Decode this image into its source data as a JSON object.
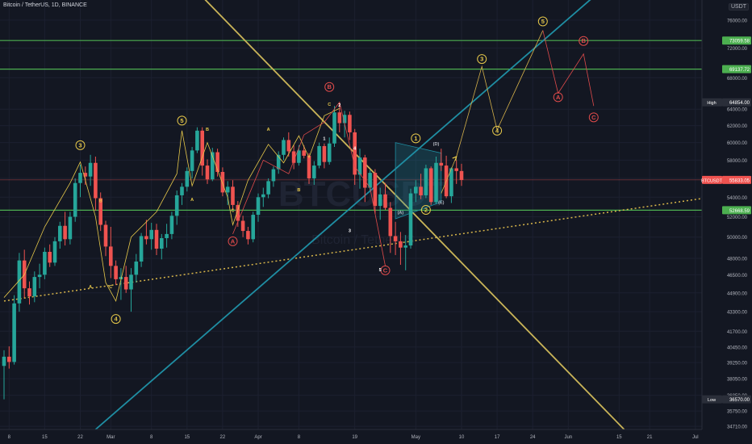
{
  "symbol_title": "Bitcoin / TetherUS, 1D, BINANCE",
  "currency_button": "USDT",
  "watermark_symbol": "BTCUSDT",
  "watermark_name": "Bitcoin / TetherUS",
  "colors": {
    "background": "#131722",
    "up": "#26a69a",
    "down": "#ef5350",
    "support_line": "#4caf50",
    "trend_yellow": "#c9b458",
    "trend_cyan": "#1f8ea3",
    "wave_yellow": "#e6c84a",
    "wave_red": "#e04b4b"
  },
  "chart_data": {
    "type": "candlestick",
    "title": "Bitcoin / TetherUS, 1D, BINANCE",
    "y_axis": {
      "scale": "log",
      "range": [
        34500,
        79000
      ],
      "ticks": [
        "76000.00",
        "72000.00",
        "68000.00",
        "64000.00",
        "62000.00",
        "60000.00",
        "58000.00",
        "56000.00",
        "54000.00",
        "52000.00",
        "50000.00",
        "48000.00",
        "46500.00",
        "44900.00",
        "43300.00",
        "41700.00",
        "40450.00",
        "39250.00",
        "38050.00",
        "36850.00",
        "35750.00",
        "34710.00"
      ],
      "tick_values": [
        76000,
        72000,
        68000,
        64000,
        62000,
        60000,
        58000,
        56000,
        54000,
        52000,
        50000,
        48000,
        46500,
        44900,
        43300,
        41700,
        40450,
        39250,
        38050,
        36850,
        35750,
        34710
      ]
    },
    "x_axis": {
      "ticks": [
        "8",
        "15",
        "22",
        "Mar",
        "8",
        "15",
        "22",
        "Apr",
        "8",
        "19",
        "May",
        "10",
        "17",
        "24",
        "Jun",
        "15",
        "21",
        "Jul"
      ],
      "tick_index": [
        1,
        8,
        15,
        21,
        29,
        36,
        43,
        50,
        58,
        69,
        81,
        90,
        97,
        104,
        111,
        121,
        127,
        136
      ],
      "total_bars": 140
    },
    "price_labels": [
      {
        "text": "73059.58",
        "value": 73059.58,
        "kind": "level"
      },
      {
        "text": "69137.72",
        "value": 69137.72,
        "kind": "level"
      },
      {
        "text": "High",
        "value": 64854,
        "kind": "tag"
      },
      {
        "text": "64854.00",
        "value": 64854,
        "kind": "high"
      },
      {
        "text": "BTCUSDT",
        "value": 55833.05,
        "kind": "tag"
      },
      {
        "text": "55833.05",
        "value": 55833.05,
        "kind": "last"
      },
      {
        "text": "52668.59",
        "value": 52668.59,
        "kind": "level"
      },
      {
        "text": "Low",
        "value": 36570,
        "kind": "tag"
      },
      {
        "text": "36570.00",
        "value": 36570,
        "kind": "low"
      }
    ],
    "horizontal_lines": [
      73059.58,
      69137.72,
      52668.59
    ],
    "candles": [
      [
        39000,
        40200,
        36570,
        39700
      ],
      [
        39700,
        40500,
        38800,
        39300
      ],
      [
        39300,
        44700,
        39100,
        44000
      ],
      [
        44000,
        48500,
        43300,
        47800
      ],
      [
        47800,
        48800,
        44500,
        45300
      ],
      [
        45300,
        45900,
        43900,
        44600
      ],
      [
        44600,
        46800,
        44100,
        46300
      ],
      [
        46300,
        47500,
        45300,
        46500
      ],
      [
        46500,
        49000,
        46100,
        48600
      ],
      [
        48600,
        49300,
        47200,
        47600
      ],
      [
        47600,
        50000,
        47300,
        49600
      ],
      [
        49600,
        51500,
        48900,
        51100
      ],
      [
        51100,
        52500,
        49200,
        49800
      ],
      [
        49800,
        52500,
        49300,
        52000
      ],
      [
        52000,
        56000,
        51500,
        55500
      ],
      [
        55500,
        57500,
        54000,
        56600
      ],
      [
        56600,
        57300,
        55300,
        56200
      ],
      [
        56200,
        58600,
        55200,
        57700
      ],
      [
        57700,
        58400,
        52600,
        53900
      ],
      [
        53900,
        54500,
        50600,
        51200
      ],
      [
        51200,
        51600,
        48200,
        49100
      ],
      [
        49100,
        51000,
        46200,
        47300
      ],
      [
        47300,
        47800,
        45600,
        46100
      ],
      [
        46100,
        47100,
        44300,
        46300
      ],
      [
        46300,
        47300,
        44900,
        45200
      ],
      [
        45200,
        47100,
        43300,
        46500
      ],
      [
        46500,
        48400,
        45800,
        47700
      ],
      [
        47700,
        50400,
        47200,
        50100
      ],
      [
        50100,
        51700,
        49300,
        49800
      ],
      [
        49800,
        51400,
        48800,
        50700
      ],
      [
        50700,
        51300,
        48300,
        48900
      ],
      [
        48900,
        50300,
        47900,
        49900
      ],
      [
        49900,
        51300,
        49000,
        50300
      ],
      [
        50300,
        52500,
        49800,
        52100
      ],
      [
        52100,
        54700,
        51200,
        54200
      ],
      [
        54200,
        55500,
        53200,
        55100
      ],
      [
        55100,
        57200,
        54600,
        56800
      ],
      [
        56800,
        59500,
        56000,
        59100
      ],
      [
        59100,
        61800,
        58800,
        61400
      ],
      [
        61400,
        61800,
        56300,
        57400
      ],
      [
        57400,
        58100,
        55400,
        55900
      ],
      [
        55900,
        59400,
        55700,
        58900
      ],
      [
        58900,
        59300,
        56200,
        56700
      ],
      [
        56700,
        57200,
        54100,
        54500
      ],
      [
        54500,
        55700,
        53200,
        55100
      ],
      [
        55100,
        55800,
        52700,
        53200
      ],
      [
        53200,
        53600,
        51000,
        51600
      ],
      [
        51600,
        52100,
        50000,
        50600
      ],
      [
        50600,
        51000,
        49300,
        49800
      ],
      [
        49800,
        52500,
        49500,
        52200
      ],
      [
        52200,
        54400,
        51500,
        54000
      ],
      [
        54000,
        55000,
        53000,
        54300
      ],
      [
        54300,
        56000,
        53900,
        55700
      ],
      [
        55700,
        57300,
        55100,
        57000
      ],
      [
        57000,
        59000,
        56500,
        58600
      ],
      [
        58600,
        60600,
        58000,
        60300
      ],
      [
        60300,
        61200,
        58400,
        59000
      ],
      [
        59000,
        59700,
        57000,
        57700
      ],
      [
        57700,
        59700,
        57400,
        59100
      ],
      [
        59100,
        59700,
        58200,
        58500
      ],
      [
        58500,
        58800,
        55400,
        56000
      ],
      [
        56000,
        57900,
        55300,
        57400
      ],
      [
        57400,
        60000,
        57100,
        59600
      ],
      [
        59600,
        59900,
        57100,
        57800
      ],
      [
        57800,
        60600,
        57500,
        59900
      ],
      [
        59900,
        64400,
        59500,
        63600
      ],
      [
        63600,
        64854,
        61200,
        62300
      ],
      [
        62300,
        63800,
        60600,
        63300
      ],
      [
        63300,
        63700,
        60300,
        61200
      ],
      [
        61200,
        61600,
        55300,
        56400
      ],
      [
        56400,
        59300,
        54900,
        58300
      ],
      [
        58300,
        58600,
        53500,
        55000
      ],
      [
        55000,
        56900,
        54600,
        56600
      ],
      [
        56600,
        57000,
        52300,
        53100
      ],
      [
        53100,
        55000,
        51700,
        54300
      ],
      [
        54300,
        55500,
        52700,
        52900
      ],
      [
        52900,
        53500,
        48500,
        50100
      ],
      [
        50100,
        51500,
        48300,
        49600
      ],
      [
        49600,
        50500,
        47400,
        49000
      ],
      [
        49000,
        50200,
        46900,
        49200
      ],
      [
        49200,
        54900,
        48900,
        54400
      ],
      [
        54400,
        55800,
        53500,
        55100
      ],
      [
        55100,
        56500,
        53800,
        54200
      ],
      [
        54200,
        57500,
        53900,
        57100
      ],
      [
        57100,
        57300,
        53200,
        53500
      ],
      [
        53500,
        58400,
        53300,
        57700
      ],
      [
        57700,
        59300,
        56800,
        57400
      ],
      [
        57400,
        58500,
        53900,
        54100
      ],
      [
        54100,
        57200,
        53400,
        57100
      ],
      [
        57100,
        58000,
        55400,
        56800
      ],
      [
        56800,
        57600,
        55200,
        55833
      ]
    ],
    "support_dotted": {
      "from": [
        0,
        44200
      ],
      "to": [
        139,
        54000
      ]
    },
    "trendlines": [
      {
        "name": "descending",
        "color": "#c9b458",
        "from": [
          39,
          79500
        ],
        "to": [
          122,
          34500
        ]
      },
      {
        "name": "ascending",
        "color": "#1f8ea3",
        "from": [
          18,
          34500
        ],
        "to": [
          116,
          79500
        ]
      }
    ],
    "wave_count_yellow": [
      {
        "label": "3",
        "bar": 15,
        "price": 59700
      },
      {
        "label": "4",
        "bar": 22,
        "price": 42700
      },
      {
        "label": "5",
        "bar": 35,
        "price": 62600
      },
      {
        "label": "1",
        "bar": 81,
        "price": 60500
      },
      {
        "label": "2",
        "bar": 83,
        "price": 52700
      },
      {
        "label": "3",
        "bar": 94,
        "price": 70500
      },
      {
        "label": "4",
        "bar": 97,
        "price": 61400
      },
      {
        "label": "5",
        "bar": 106,
        "price": 75800
      }
    ],
    "wave_count_red": [
      {
        "label": "A",
        "bar": 45,
        "price": 49600
      },
      {
        "label": "B",
        "bar": 64,
        "price": 66800
      },
      {
        "label": "C",
        "bar": 75,
        "price": 46900
      },
      {
        "label": "A",
        "bar": 109,
        "price": 65500
      },
      {
        "label": "B",
        "bar": 114,
        "price": 73000
      },
      {
        "label": "C",
        "bar": 116,
        "price": 63000
      }
    ],
    "minor_labels": [
      {
        "text": "A",
        "bar": 17,
        "price": 45300,
        "color": "#e6c84a"
      },
      {
        "text": "C",
        "bar": 21,
        "price": 45300,
        "color": "#e6c84a"
      },
      {
        "text": "B",
        "bar": 19,
        "price": 53500,
        "color": "#e6c84a"
      },
      {
        "text": "A",
        "bar": 37,
        "price": 53600,
        "color": "#e6c84a"
      },
      {
        "text": "B",
        "bar": 40,
        "price": 61400,
        "color": "#e6c84a"
      },
      {
        "text": "C",
        "bar": 45,
        "price": 52500,
        "color": "#e6c84a"
      },
      {
        "text": "A",
        "bar": 52,
        "price": 61400,
        "color": "#e6c84a"
      },
      {
        "text": "B",
        "bar": 58,
        "price": 54600,
        "color": "#e6c84a"
      },
      {
        "text": "C",
        "bar": 64,
        "price": 64400,
        "color": "#e6c84a"
      },
      {
        "text": "2",
        "bar": 66,
        "price": 64300,
        "color": "#ffffff"
      },
      {
        "text": "1",
        "bar": 63,
        "price": 60300,
        "color": "#ffffff"
      },
      {
        "text": "3",
        "bar": 68,
        "price": 50500,
        "color": "#ffffff"
      },
      {
        "text": "4",
        "bar": 69,
        "price": 59200,
        "color": "#ffffff"
      },
      {
        "text": "5",
        "bar": 74,
        "price": 46800,
        "color": "#ffffff"
      },
      {
        "text": "(A)",
        "bar": 78,
        "price": 52300,
        "color": "#b2b5be"
      },
      {
        "text": "(D)",
        "bar": 85,
        "price": 59700,
        "color": "#b2b5be"
      },
      {
        "text": "(E)",
        "bar": 86,
        "price": 53300,
        "color": "#b2b5be"
      }
    ],
    "wave_paths": {
      "yellow": [
        [
          0,
          44500
        ],
        [
          4,
          46500
        ],
        [
          8,
          51000
        ],
        [
          13,
          55500
        ],
        [
          15,
          57800
        ],
        [
          18,
          52000
        ],
        [
          20,
          45800
        ],
        [
          22,
          44200
        ],
        [
          25,
          50000
        ],
        [
          30,
          52500
        ],
        [
          34,
          56500
        ],
        [
          35,
          61400
        ],
        [
          37,
          55200
        ],
        [
          40,
          60000
        ],
        [
          44,
          54000
        ],
        [
          45,
          51200
        ],
        [
          48,
          55800
        ],
        [
          52,
          59800
        ],
        [
          55,
          57700
        ],
        [
          58,
          60800
        ],
        [
          60,
          58300
        ],
        [
          63,
          63200
        ],
        [
          66,
          64100
        ]
      ],
      "yellow_projection": [
        [
          86,
          54400
        ],
        [
          89,
          58400
        ],
        [
          94,
          69500
        ],
        [
          97,
          61500
        ],
        [
          106,
          74500
        ]
      ],
      "red_projection": [
        [
          106,
          74500
        ],
        [
          109,
          66000
        ],
        [
          114,
          71200
        ],
        [
          116,
          64400
        ]
      ],
      "red": [
        [
          45,
          50300
        ],
        [
          51,
          58000
        ],
        [
          56,
          56500
        ],
        [
          59,
          60900
        ],
        [
          63,
          62400
        ],
        [
          66,
          64854
        ],
        [
          69,
          57300
        ],
        [
          72,
          55000
        ],
        [
          75,
          47300
        ]
      ],
      "triangle_upper": [
        [
          77,
          60000
        ],
        [
          86,
          58800
        ]
      ],
      "triangle_lower": [
        [
          77,
          51800
        ],
        [
          86,
          53500
        ]
      ]
    },
    "projection_arrow": {
      "from": [
        86,
        55000
      ],
      "to": [
        89,
        58400
      ]
    }
  }
}
